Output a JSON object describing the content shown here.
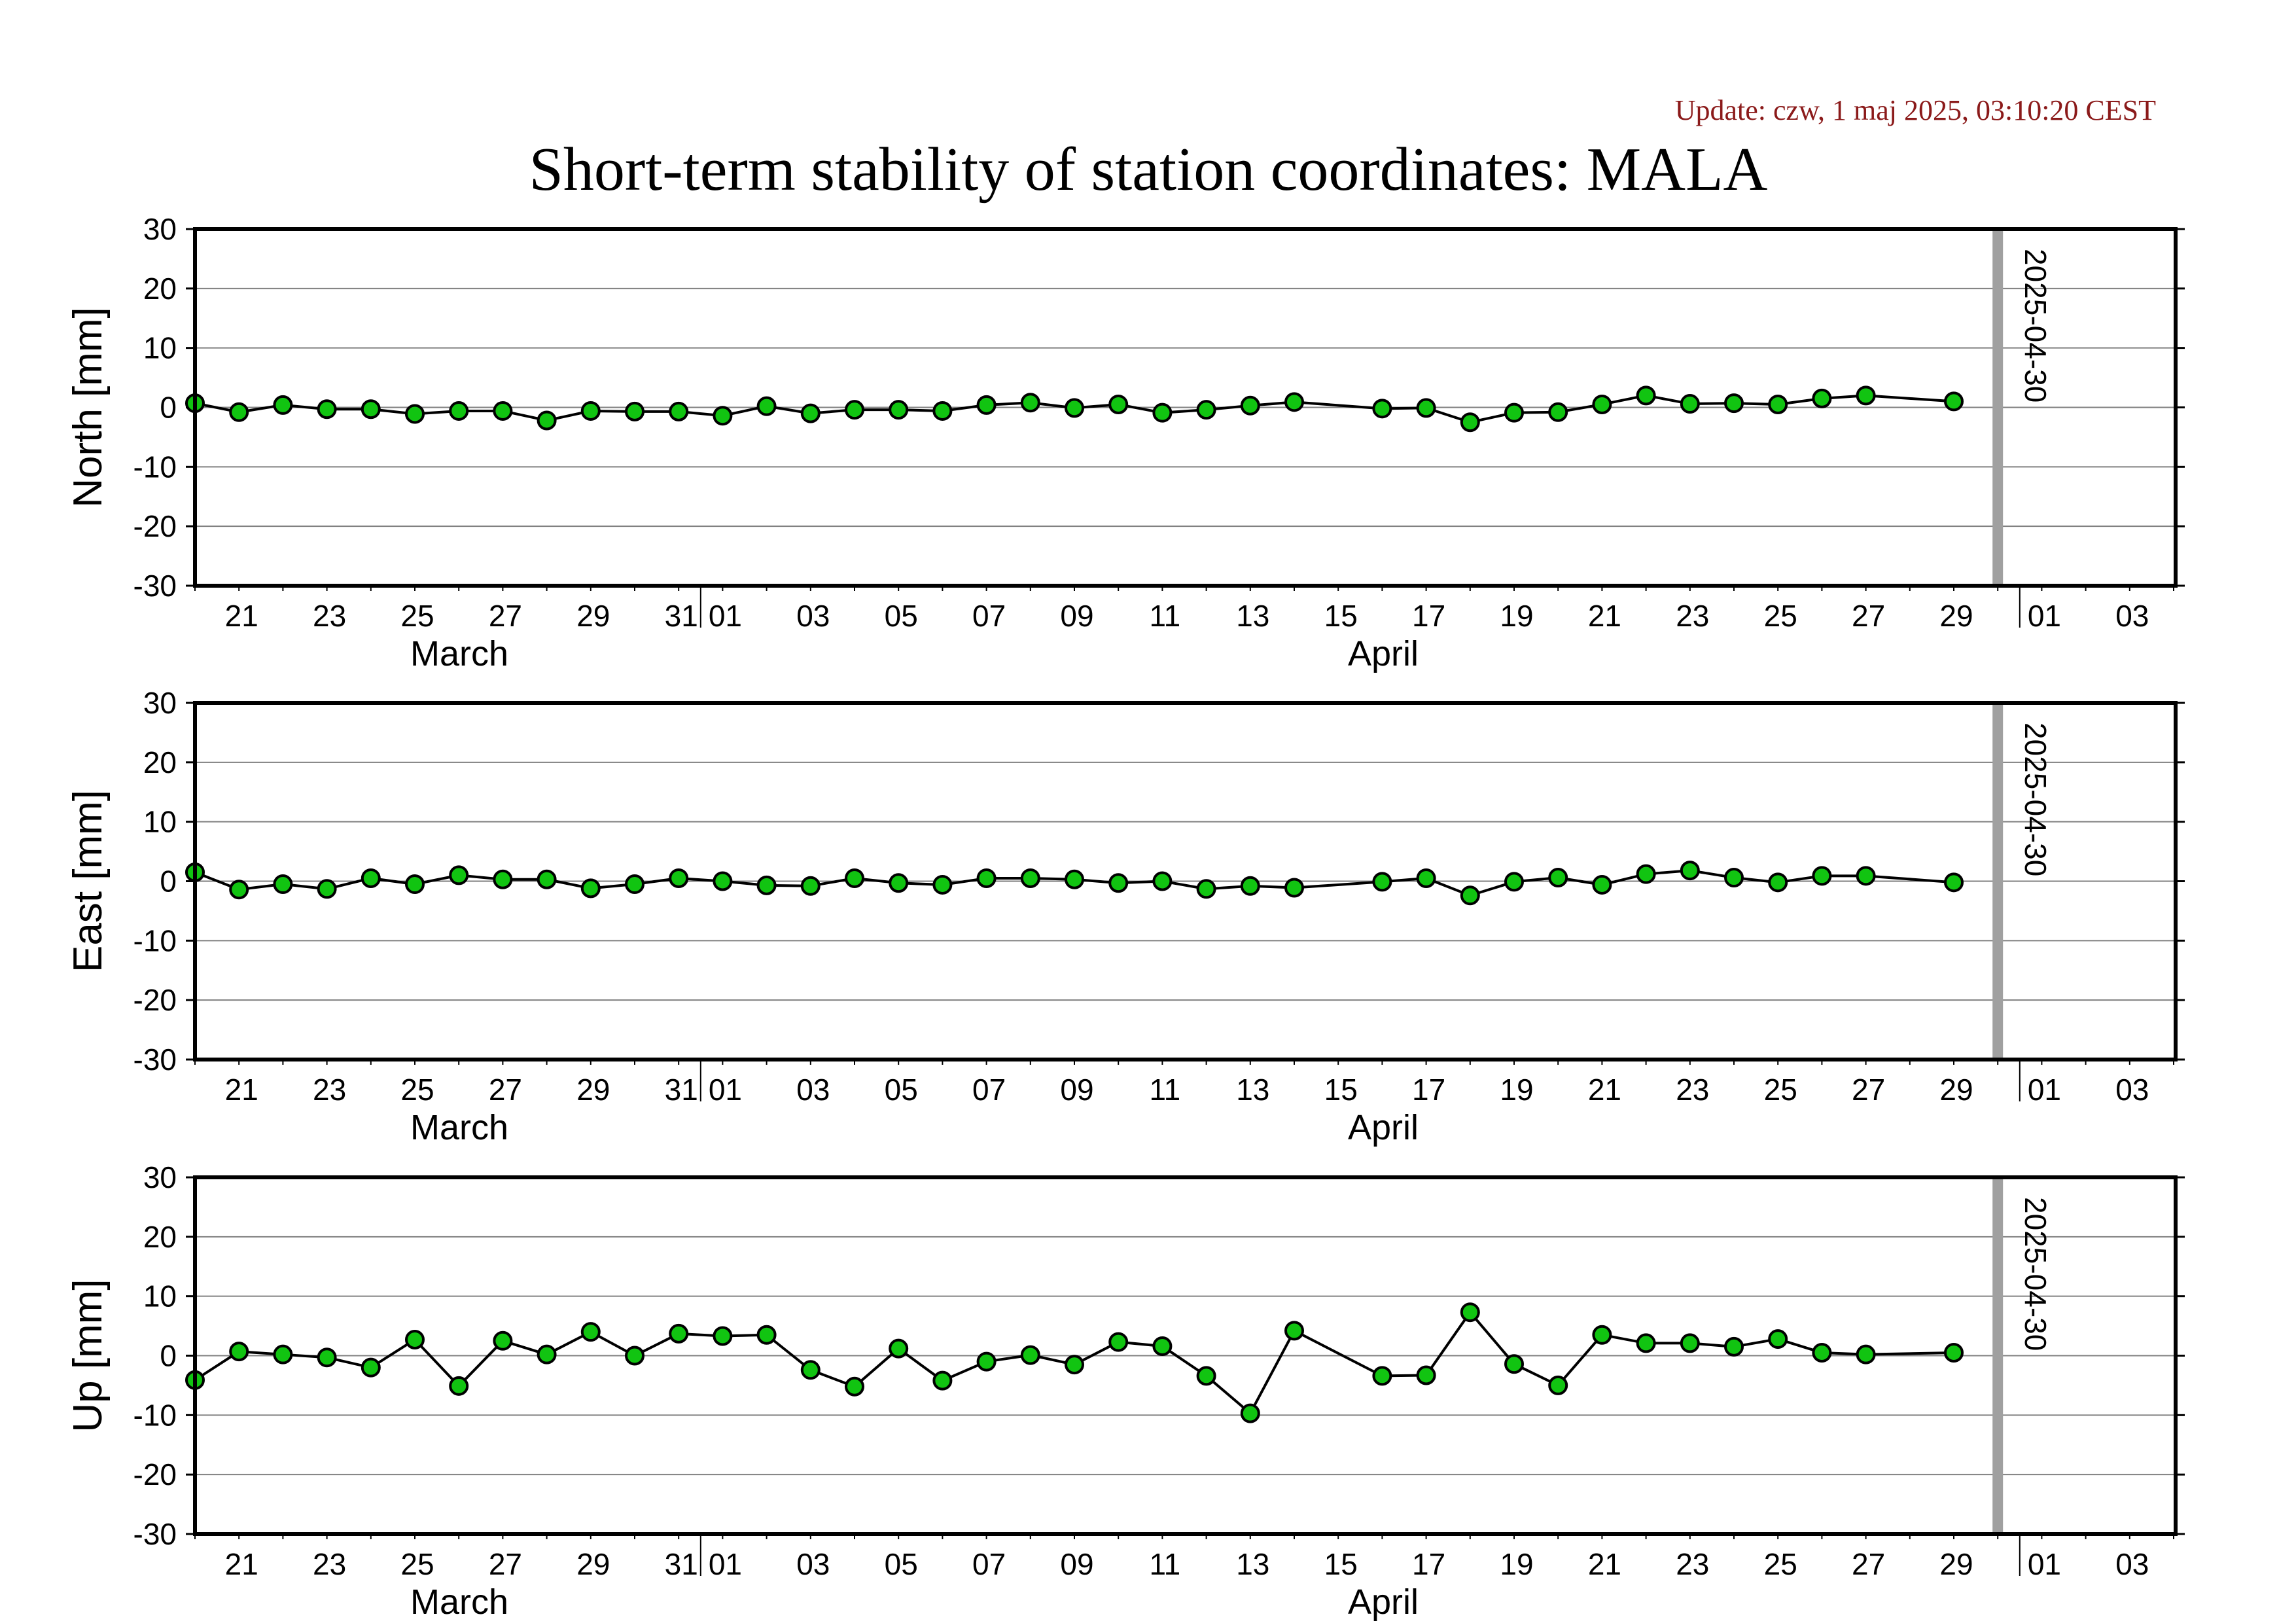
{
  "update_text": "Update: czw, 1 maj 2025, 03:10:20 CEST",
  "title": "Short-term stability of station coordinates: MALA",
  "colors": {
    "marker_fill": "#11c411",
    "marker_stroke": "#000000",
    "line": "#000000",
    "grid": "#808080",
    "marker_line": "#a0a0a0",
    "update_text": "#8b1a1a"
  },
  "chart_data": [
    {
      "type": "line",
      "ylabel": "North [mm]",
      "ylim": [
        -30,
        30
      ],
      "yticks": [
        30,
        20,
        10,
        0,
        -10,
        -20,
        -30
      ],
      "xlim": [
        "2025-03-20",
        "2025-05-04"
      ],
      "xtick_labels": [
        "21",
        "23",
        "25",
        "27",
        "29",
        "31",
        "01",
        "03",
        "05",
        "07",
        "09",
        "11",
        "13",
        "15",
        "17",
        "19",
        "21",
        "23",
        "25",
        "27",
        "29",
        "01",
        "03"
      ],
      "month_labels": [
        "March",
        "April"
      ],
      "marker_date_label": "2025-04-30",
      "grid": true,
      "x": [
        "03-20",
        "03-21",
        "03-22",
        "03-23",
        "03-24",
        "03-25",
        "03-26",
        "03-27",
        "03-28",
        "03-29",
        "03-30",
        "03-31",
        "04-01",
        "04-02",
        "04-03",
        "04-04",
        "04-05",
        "04-06",
        "04-07",
        "04-08",
        "04-09",
        "04-10",
        "04-11",
        "04-12",
        "04-13",
        "04-14",
        "04-16",
        "04-17",
        "04-18",
        "04-19",
        "04-20",
        "04-21",
        "04-22",
        "04-23",
        "04-24",
        "04-25",
        "04-26",
        "04-27",
        "04-29"
      ],
      "values": [
        0.7,
        -0.8,
        0.4,
        -0.3,
        -0.3,
        -1.1,
        -0.6,
        -0.6,
        -2.2,
        -0.6,
        -0.7,
        -0.7,
        -1.4,
        0.2,
        -1.0,
        -0.4,
        -0.4,
        -0.6,
        0.4,
        0.8,
        -0.1,
        0.5,
        -0.9,
        -0.4,
        0.3,
        0.9,
        -0.2,
        -0.1,
        -2.5,
        -0.9,
        -0.8,
        0.5,
        2.0,
        0.6,
        0.7,
        0.5,
        1.5,
        2.0,
        1.0
      ]
    },
    {
      "type": "line",
      "ylabel": "East [mm]",
      "ylim": [
        -30,
        30
      ],
      "yticks": [
        30,
        20,
        10,
        0,
        -10,
        -20,
        -30
      ],
      "xlim": [
        "2025-03-20",
        "2025-05-04"
      ],
      "xtick_labels": [
        "21",
        "23",
        "25",
        "27",
        "29",
        "31",
        "01",
        "03",
        "05",
        "07",
        "09",
        "11",
        "13",
        "15",
        "17",
        "19",
        "21",
        "23",
        "25",
        "27",
        "29",
        "01",
        "03"
      ],
      "month_labels": [
        "March",
        "April"
      ],
      "marker_date_label": "2025-04-30",
      "grid": true,
      "x": [
        "03-20",
        "03-21",
        "03-22",
        "03-23",
        "03-24",
        "03-25",
        "03-26",
        "03-27",
        "03-28",
        "03-29",
        "03-30",
        "03-31",
        "04-01",
        "04-02",
        "04-03",
        "04-04",
        "04-05",
        "04-06",
        "04-07",
        "04-08",
        "04-09",
        "04-10",
        "04-11",
        "04-12",
        "04-13",
        "04-14",
        "04-16",
        "04-17",
        "04-18",
        "04-19",
        "04-20",
        "04-21",
        "04-22",
        "04-23",
        "04-24",
        "04-25",
        "04-26",
        "04-27",
        "04-29"
      ],
      "values": [
        1.5,
        -1.4,
        -0.5,
        -1.3,
        0.5,
        -0.5,
        1.0,
        0.3,
        0.3,
        -1.2,
        -0.5,
        0.5,
        0.0,
        -0.7,
        -0.8,
        0.5,
        -0.3,
        -0.6,
        0.5,
        0.5,
        0.3,
        -0.3,
        0.0,
        -1.3,
        -0.8,
        -1.1,
        -0.1,
        0.5,
        -2.4,
        -0.1,
        0.6,
        -0.6,
        1.2,
        1.8,
        0.6,
        -0.2,
        0.9,
        0.9,
        -0.2
      ]
    },
    {
      "type": "line",
      "ylabel": "Up [mm]",
      "ylim": [
        -30,
        30
      ],
      "yticks": [
        30,
        20,
        10,
        0,
        -10,
        -20,
        -30
      ],
      "xlim": [
        "2025-03-20",
        "2025-05-04"
      ],
      "xtick_labels": [
        "21",
        "23",
        "25",
        "27",
        "29",
        "31",
        "01",
        "03",
        "05",
        "07",
        "09",
        "11",
        "13",
        "15",
        "17",
        "19",
        "21",
        "23",
        "25",
        "27",
        "29",
        "01",
        "03"
      ],
      "month_labels": [
        "March",
        "April"
      ],
      "marker_date_label": "2025-04-30",
      "grid": true,
      "x": [
        "03-20",
        "03-21",
        "03-22",
        "03-23",
        "03-24",
        "03-25",
        "03-26",
        "03-27",
        "03-28",
        "03-29",
        "03-30",
        "03-31",
        "04-01",
        "04-02",
        "04-03",
        "04-04",
        "04-05",
        "04-06",
        "04-07",
        "04-08",
        "04-09",
        "04-10",
        "04-11",
        "04-12",
        "04-13",
        "04-14",
        "04-16",
        "04-17",
        "04-18",
        "04-19",
        "04-20",
        "04-21",
        "04-22",
        "04-23",
        "04-24",
        "04-25",
        "04-26",
        "04-27",
        "04-29"
      ],
      "values": [
        -4.1,
        0.7,
        0.2,
        -0.3,
        -2.0,
        2.7,
        -5.1,
        2.5,
        0.2,
        4.0,
        0.0,
        3.7,
        3.3,
        3.5,
        -2.4,
        -5.2,
        1.2,
        -4.2,
        -1.0,
        0.1,
        -1.5,
        2.3,
        1.6,
        -3.4,
        -9.7,
        4.2,
        -3.4,
        -3.3,
        7.3,
        -1.4,
        -5.0,
        3.5,
        2.1,
        2.1,
        1.5,
        2.8,
        0.5,
        0.2,
        0.5
      ]
    }
  ]
}
